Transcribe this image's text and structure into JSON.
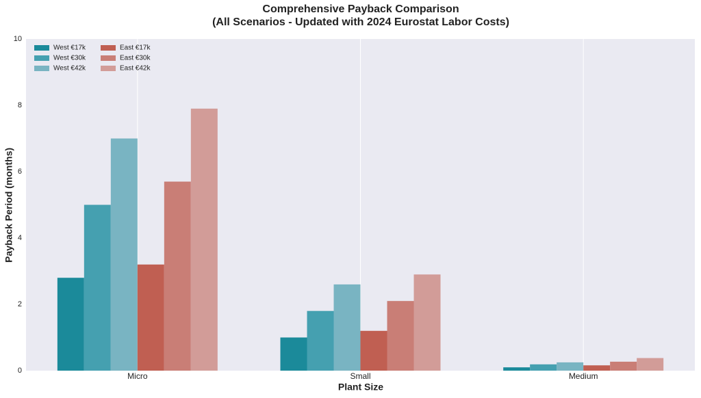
{
  "chart_data": {
    "type": "bar",
    "title": [
      "Comprehensive Payback Comparison",
      "(All Scenarios - Updated with 2024 Eurostat Labor Costs)"
    ],
    "x_label": "Plant Size",
    "y_label": "Payback Period (months)",
    "categories": [
      "Micro",
      "Small",
      "Medium"
    ],
    "series": [
      {
        "name": "West €17k",
        "color": "#1b8a9a",
        "values": [
          2.8,
          1.0,
          0.1
        ]
      },
      {
        "name": "West €30k",
        "color": "#45a0b0",
        "values": [
          5.0,
          1.8,
          0.19
        ]
      },
      {
        "name": "West €42k",
        "color": "#79b4c2",
        "values": [
          7.0,
          2.6,
          0.25
        ]
      },
      {
        "name": "East €17k",
        "color": "#c05f52",
        "values": [
          3.2,
          1.2,
          0.16
        ]
      },
      {
        "name": "East €30k",
        "color": "#c97e76",
        "values": [
          5.7,
          2.1,
          0.27
        ]
      },
      {
        "name": "East €42k",
        "color": "#d29c98",
        "values": [
          7.9,
          2.9,
          0.38
        ]
      }
    ],
    "ylim": [
      0,
      10
    ],
    "yticks": [
      0,
      2,
      4,
      6,
      8,
      10
    ],
    "grid": "x",
    "legend": "upper left"
  }
}
